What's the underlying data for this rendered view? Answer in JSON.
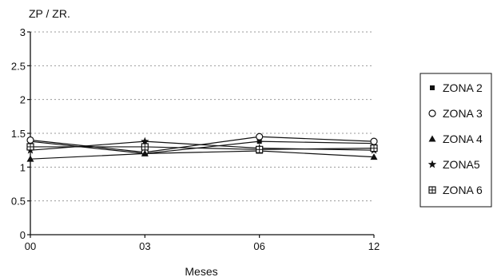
{
  "chart_data": {
    "type": "line",
    "title": "",
    "ylabel": "ZP / ZR.",
    "xlabel": "Meses",
    "categories": [
      "00",
      "03",
      "06",
      "12"
    ],
    "ylim": [
      0,
      3
    ],
    "yticks": [
      "0",
      "0.5",
      "1",
      "1.5",
      "2",
      "2.5",
      "3"
    ],
    "y_gridlines": true,
    "grid_color": "#9a9a9a",
    "line_color": "#111111",
    "legend_position": "right",
    "series": [
      {
        "name": "ZONA 2",
        "marker": "square",
        "values": [
          1.38,
          1.2,
          1.38,
          1.35
        ]
      },
      {
        "name": "ZONA 3",
        "marker": "circle-open",
        "values": [
          1.4,
          1.22,
          1.45,
          1.38
        ]
      },
      {
        "name": "ZONA 4",
        "marker": "triangle",
        "values": [
          1.12,
          1.2,
          1.24,
          1.15
        ]
      },
      {
        "name": "ZONA5",
        "marker": "star",
        "values": [
          1.25,
          1.38,
          1.28,
          1.25
        ]
      },
      {
        "name": "ZONA 6",
        "marker": "square-open",
        "values": [
          1.3,
          1.3,
          1.26,
          1.28
        ]
      }
    ]
  }
}
